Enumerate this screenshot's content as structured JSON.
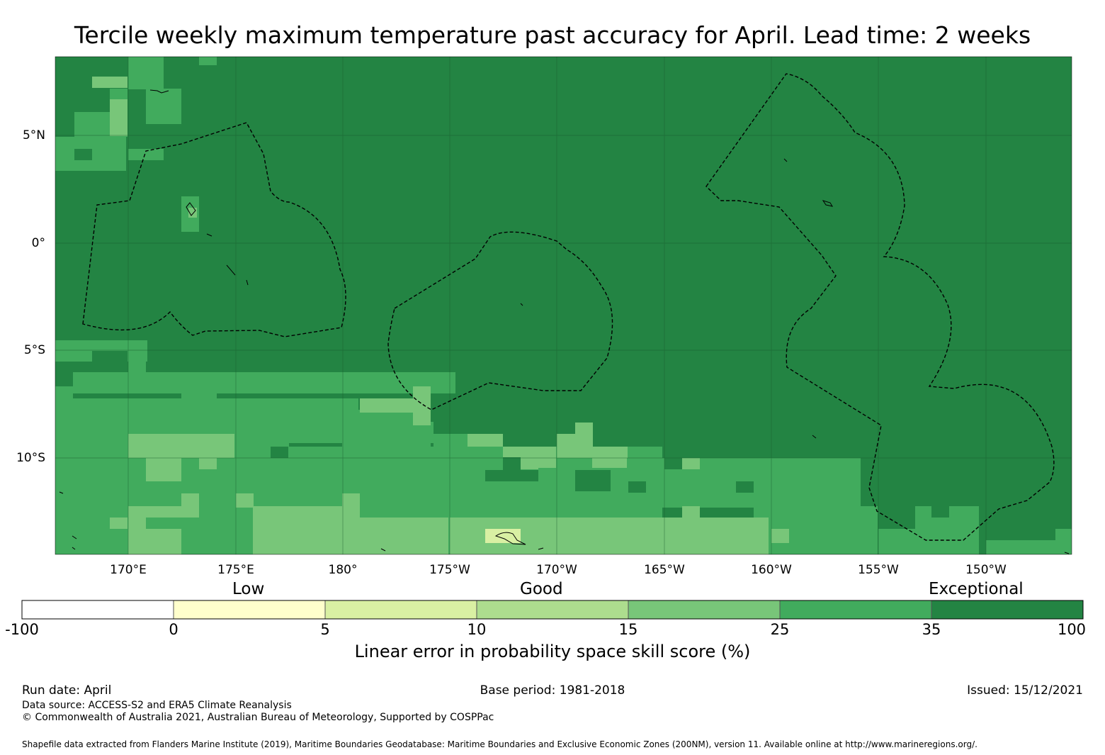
{
  "title": "Tercile weekly maximum temperature past accuracy for April. Lead time: 2 weeks",
  "map": {
    "latitude_labels": [
      "5°N",
      "0°",
      "5°S",
      "10°S"
    ],
    "longitude_labels": [
      "170°E",
      "175°E",
      "180°",
      "175°W",
      "170°W",
      "165°W",
      "160°W",
      "155°W",
      "150°W"
    ],
    "extent": {
      "lon_min": 166.6,
      "lon_max": 214.0,
      "lat_min": -14.6,
      "lat_max": 8.6
    },
    "legend_colors": {
      "b0": "#ffffff",
      "b1": "#ffffcc",
      "b2": "#d9f0a3",
      "b3": "#addd8e",
      "b4": "#78c679",
      "b5": "#41ab5d",
      "b6": "#238443"
    }
  },
  "colorbar": {
    "categories": [
      "Low",
      "Good",
      "Exceptional"
    ],
    "ticks": [
      "-100",
      "0",
      "5",
      "10",
      "15",
      "25",
      "35",
      "100"
    ],
    "label": "Linear error in probability space skill score (%)"
  },
  "footer": {
    "run_date": "Run date: April",
    "base_period": "Base period: 1981-2018",
    "issued": "Issued: 15/12/2021",
    "data_source": "Data source: ACCESS-S2 and ERA5 Climate Reanalysis",
    "copyright": "© Commonwealth of Australia 2021, Australian Bureau of Meteorology, Supported by COSPPac",
    "shapefile": "Shapefile data extracted from Flanders Marine Institute (2019), Maritime Boundaries Geodatabase: Maritime Boundaries and Exclusive Economic Zones (200NM), version 11. Available online at http://www.marineregions.org/."
  }
}
